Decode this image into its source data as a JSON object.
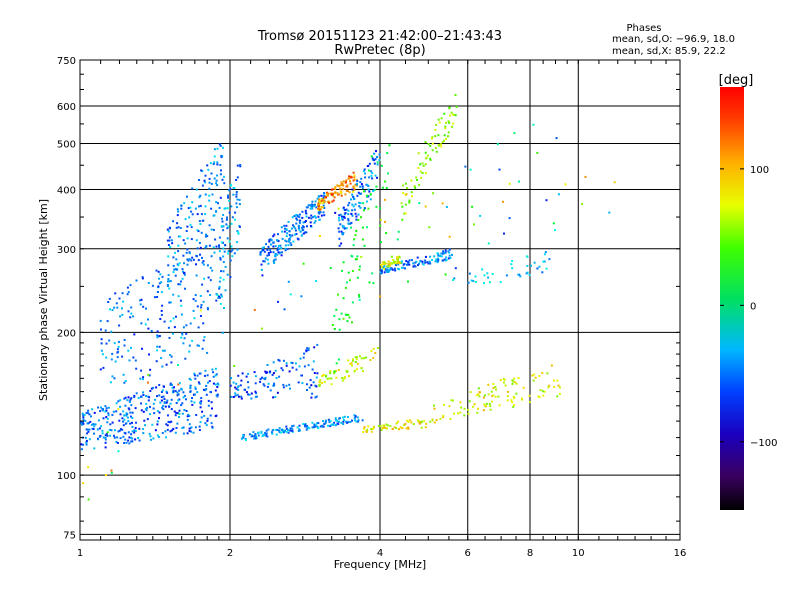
{
  "header": {
    "title": "Tromsø 20151123 21:42:00–21:43:43",
    "subtitle": "RwPretec (8p)"
  },
  "phases": {
    "heading": "Phases",
    "line_o": "mean, sd,O: −96.9, 18.0",
    "line_x": "mean, sd,X:  85.9, 22.2"
  },
  "colorbar": {
    "label": "[deg]",
    "ticks": [
      {
        "value": 100,
        "label": "100"
      },
      {
        "value": 0,
        "label": "0"
      },
      {
        "value": -100,
        "label": "−100"
      }
    ]
  },
  "chart_data": {
    "type": "scatter",
    "xlabel": "Frequency [MHz]",
    "ylabel": "Stationary phase Virtual Height [km]",
    "x_scale": "log2",
    "y_scale": "log",
    "xlim": [
      1,
      16
    ],
    "ylim": [
      73,
      750
    ],
    "x_ticks": [
      {
        "value": 1,
        "label": "1"
      },
      {
        "value": 2,
        "label": "2"
      },
      {
        "value": 4,
        "label": "4"
      },
      {
        "value": 6,
        "label": "6"
      },
      {
        "value": 8,
        "label": "8"
      },
      {
        "value": 10,
        "label": "10"
      },
      {
        "value": 16,
        "label": "16"
      }
    ],
    "y_ticks": [
      {
        "value": 75,
        "label": "75"
      },
      {
        "value": 100,
        "label": "100"
      },
      {
        "value": 200,
        "label": "200"
      },
      {
        "value": 300,
        "label": "300"
      },
      {
        "value": 400,
        "label": "400"
      },
      {
        "value": 500,
        "label": "500"
      },
      {
        "value": 600,
        "label": "600"
      },
      {
        "value": 750,
        "label": "750"
      }
    ],
    "grid": true,
    "colorscale": "rainbow phase",
    "color_range": [
      -150,
      160
    ],
    "clusters": [
      {
        "f": [
          1.0,
          1.9
        ],
        "h0": [
          112,
          135
        ],
        "h1": [
          125,
          170
        ],
        "phase": -95,
        "n": 380
      },
      {
        "f": [
          1.1,
          1.95
        ],
        "h0": [
          150,
          230
        ],
        "h1": [
          180,
          330
        ],
        "phase": -90,
        "n": 220
      },
      {
        "f": [
          1.5,
          1.95
        ],
        "h0": [
          220,
          330
        ],
        "h1": [
          330,
          520
        ],
        "phase": -88,
        "n": 160
      },
      {
        "f": [
          1.9,
          2.1
        ],
        "h0": [
          200,
          330
        ],
        "h1": [
          300,
          480
        ],
        "phase": -80,
        "n": 80
      },
      {
        "f": [
          2.1,
          3.7
        ],
        "h0": [
          118,
          122
        ],
        "h1": [
          130,
          135
        ],
        "phase": -85,
        "n": 150
      },
      {
        "f": [
          3.7,
          5.0
        ],
        "h0": [
          123,
          127
        ],
        "h1": [
          126,
          132
        ],
        "phase": 85,
        "n": 60
      },
      {
        "f": [
          5.0,
          9.2
        ],
        "h0": [
          128,
          140
        ],
        "h1": [
          145,
          175
        ],
        "phase": 80,
        "n": 110
      },
      {
        "f": [
          2.0,
          3.0
        ],
        "h0": [
          145,
          160
        ],
        "h1": [
          145,
          190
        ],
        "phase": -100,
        "n": 120
      },
      {
        "f": [
          2.3,
          3.1
        ],
        "h0": [
          260,
          300
        ],
        "h1": [
          350,
          400
        ],
        "phase": -92,
        "n": 200
      },
      {
        "f": [
          3.0,
          3.6
        ],
        "h0": [
          360,
          380
        ],
        "h1": [
          400,
          440
        ],
        "phase": 120,
        "n": 110
      },
      {
        "f": [
          3.3,
          4.0
        ],
        "h0": [
          300,
          350
        ],
        "h1": [
          400,
          500
        ],
        "phase": -95,
        "n": 120
      },
      {
        "f": [
          4.0,
          5.6
        ],
        "h0": [
          265,
          275
        ],
        "h1": [
          285,
          300
        ],
        "phase": -90,
        "n": 110
      },
      {
        "f": [
          4.0,
          4.4
        ],
        "h0": [
          270,
          280
        ],
        "h1": [
          280,
          290
        ],
        "phase": 80,
        "n": 40
      },
      {
        "f": [
          4.4,
          5.7
        ],
        "h0": [
          330,
          400
        ],
        "h1": [
          550,
          640
        ],
        "phase": 60,
        "n": 80
      },
      {
        "f": [
          3.0,
          4.0
        ],
        "h0": [
          150,
          160
        ],
        "h1": [
          170,
          190
        ],
        "phase": 75,
        "n": 60
      },
      {
        "f": [
          3.2,
          4.2
        ],
        "h0": [
          150,
          200
        ],
        "h1": [
          300,
          620
        ],
        "phase": 10,
        "n": 70
      },
      {
        "f": [
          5.5,
          9.0
        ],
        "h0": [
          240,
          260
        ],
        "h1": [
          270,
          300
        ],
        "phase": -70,
        "n": 40
      },
      {
        "f": [
          1.0,
          12.0
        ],
        "h0": [
          80,
          100
        ],
        "h1": [
          350,
          650
        ],
        "phase": 0,
        "n": 90
      }
    ]
  }
}
